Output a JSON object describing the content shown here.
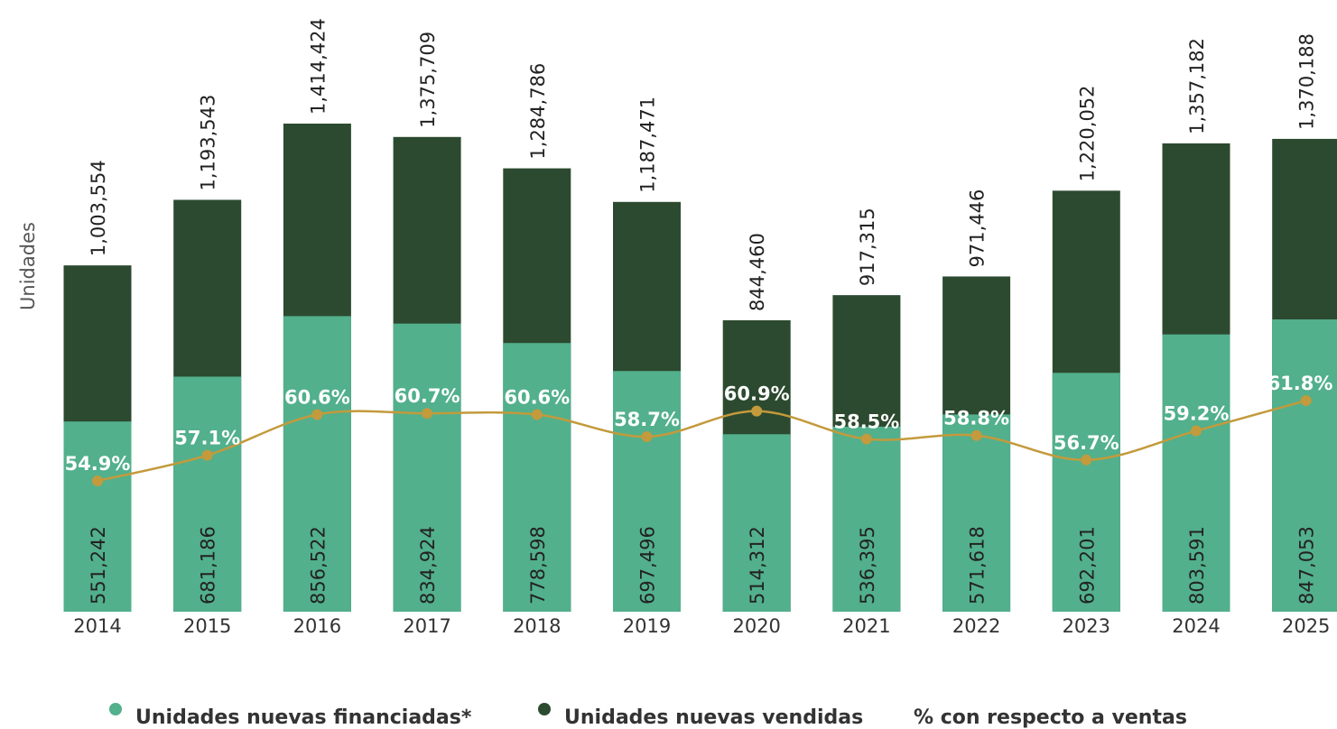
{
  "chart_data": {
    "type": "bar",
    "y_label": "Unidades",
    "categories": [
      "2014",
      "2015",
      "2016",
      "2017",
      "2018",
      "2019",
      "2020",
      "2021",
      "2022",
      "2023",
      "2024",
      "2025"
    ],
    "series": [
      {
        "name": "Unidades nuevas financiadas*",
        "color": "#52b08c",
        "values": [
          551242,
          681186,
          856522,
          834924,
          778598,
          697496,
          514312,
          536395,
          571618,
          692201,
          803591,
          847053
        ],
        "value_labels": [
          "551,242",
          "681,186",
          "856,522",
          "834,924",
          "778,598",
          "697,496",
          "514,312",
          "536,395",
          "571,618",
          "692,201",
          "803,591",
          "847,053"
        ]
      },
      {
        "name": "Unidades nuevas vendidas",
        "color": "#2c4a2f",
        "values": [
          1003554,
          1193543,
          1414424,
          1375709,
          1284786,
          1187471,
          844460,
          917315,
          971446,
          1220052,
          1357182,
          1370188
        ],
        "value_labels": [
          "1,003,554",
          "1,193,543",
          "1,414,424",
          "1,375,709",
          "1,284,786",
          "1,187,471",
          "844,460",
          "917,315",
          "971,446",
          "1,220,052",
          "1,357,182",
          "1,370,188"
        ]
      },
      {
        "name": "% con respecto a ventas",
        "type": "line",
        "axis": "y2",
        "color": "#c39a3c",
        "values": [
          54.9,
          57.1,
          60.6,
          60.7,
          60.6,
          58.7,
          60.9,
          58.5,
          58.8,
          56.7,
          59.2,
          61.8
        ],
        "value_labels": [
          "54.9%",
          "57.1%",
          "60.6%",
          "60.7%",
          "60.6%",
          "58.7%",
          "60.9%",
          "58.5%",
          "58.8%",
          "56.7%",
          "59.2%",
          "61.8%"
        ]
      }
    ]
  }
}
